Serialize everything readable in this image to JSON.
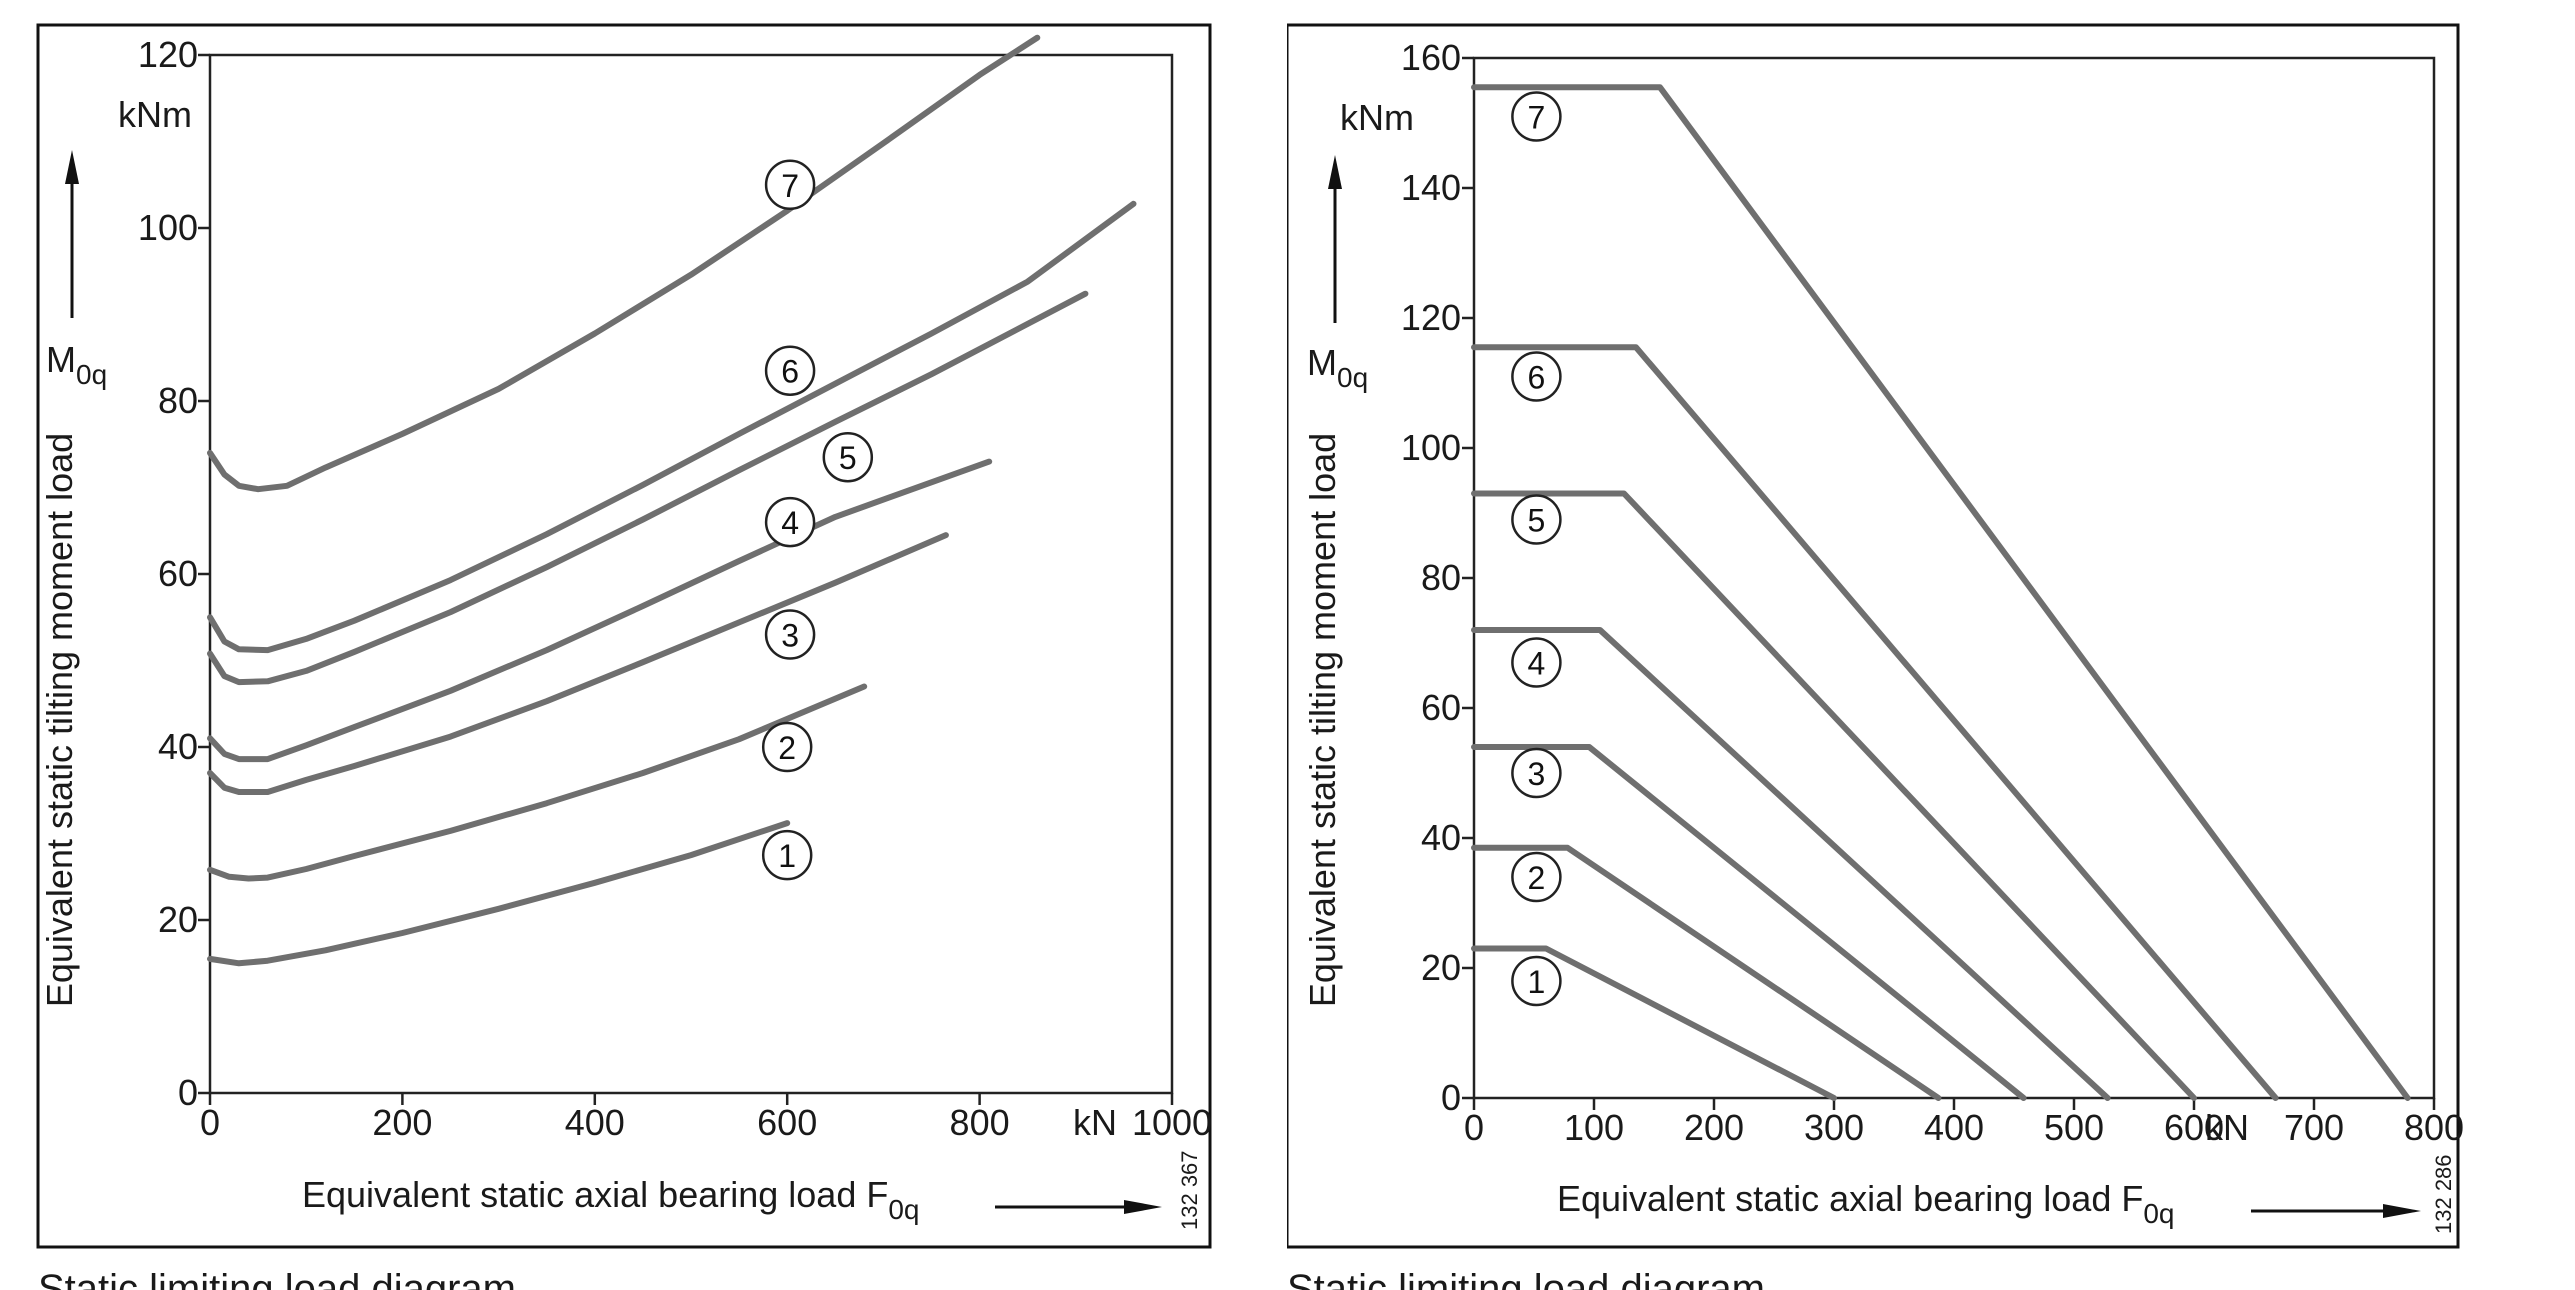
{
  "chart_data": [
    {
      "type": "line",
      "id": "left",
      "xlim": [
        0,
        1000
      ],
      "ylim": [
        0,
        120
      ],
      "x_ticks": [
        0,
        200,
        400,
        600,
        800,
        1000
      ],
      "x_tick_labels": [
        "0",
        "200",
        "400",
        "600",
        "800",
        "1000"
      ],
      "y_ticks": [
        0,
        20,
        40,
        60,
        80,
        100,
        120
      ],
      "y_tick_labels": [
        "0",
        "20",
        "40",
        "60",
        "80",
        "100",
        "120"
      ],
      "x_unit": "kN",
      "y_unit": "kNm",
      "xlabel": "Equivalent static axial bearing load",
      "xsymbol": "F",
      "xsymbol_sub": "0q",
      "ylabel": "Equivalent static tilting moment load",
      "ysymbol": "M",
      "ysymbol_sub": "0q",
      "figure_id": "132 367",
      "caption": "Static limiting load diagram",
      "grid": false,
      "series": [
        {
          "marker": "1",
          "label_at": [
            600,
            27.5
          ],
          "x": [
            0,
            30,
            60,
            120,
            200,
            300,
            400,
            500,
            600
          ],
          "y": [
            15.5,
            15,
            15.3,
            16.5,
            18.5,
            21.3,
            24.3,
            27.5,
            31.2
          ]
        },
        {
          "marker": "2",
          "label_at": [
            600,
            40
          ],
          "x": [
            0,
            20,
            40,
            60,
            100,
            150,
            250,
            350,
            450,
            550,
            680
          ],
          "y": [
            25.8,
            25.0,
            24.8,
            24.9,
            25.9,
            27.4,
            30.3,
            33.5,
            37.0,
            40.9,
            47.0
          ]
        },
        {
          "marker": "3",
          "label_at": [
            603,
            53
          ],
          "x": [
            0,
            15,
            30,
            60,
            100,
            150,
            250,
            350,
            450,
            550,
            650,
            765
          ],
          "y": [
            37.0,
            35.3,
            34.8,
            34.8,
            36.2,
            37.8,
            41.2,
            45.3,
            49.8,
            54.4,
            59.0,
            64.5
          ]
        },
        {
          "marker": "4",
          "label_at": [
            603,
            66
          ],
          "x": [
            0,
            15,
            30,
            60,
            100,
            150,
            250,
            350,
            450,
            550,
            650,
            810
          ],
          "y": [
            41.0,
            39.2,
            38.6,
            38.6,
            40.2,
            42.3,
            46.5,
            51.2,
            56.3,
            61.5,
            66.6,
            73.0
          ]
        },
        {
          "marker": "5",
          "label_at": [
            663,
            73.5
          ],
          "x": [
            0,
            15,
            30,
            60,
            100,
            150,
            250,
            350,
            450,
            550,
            650,
            750,
            910
          ],
          "y": [
            50.8,
            48.2,
            47.5,
            47.6,
            48.8,
            51.0,
            55.6,
            60.8,
            66.3,
            72.0,
            77.6,
            83.1,
            92.4
          ]
        },
        {
          "marker": "6",
          "label_at": [
            603,
            83.5
          ],
          "x": [
            0,
            15,
            30,
            60,
            100,
            150,
            250,
            350,
            450,
            550,
            650,
            750,
            850,
            960
          ],
          "y": [
            55.0,
            52.2,
            51.3,
            51.2,
            52.5,
            54.6,
            59.3,
            64.6,
            70.3,
            76.2,
            82.0,
            87.8,
            93.8,
            102.8
          ]
        },
        {
          "marker": "7",
          "label_at": [
            603,
            105
          ],
          "x": [
            0,
            15,
            30,
            50,
            80,
            120,
            200,
            300,
            400,
            500,
            600,
            700,
            800,
            860
          ],
          "y": [
            74.0,
            71.5,
            70.2,
            69.8,
            70.2,
            72.3,
            76.2,
            81.4,
            87.8,
            94.6,
            102.0,
            109.8,
            117.7,
            122.0
          ]
        }
      ]
    },
    {
      "type": "line",
      "id": "right",
      "xlim": [
        0,
        800
      ],
      "ylim": [
        0,
        160
      ],
      "x_ticks": [
        0,
        100,
        200,
        300,
        400,
        500,
        600,
        700,
        800
      ],
      "x_tick_labels": [
        "0",
        "100",
        "200",
        "300",
        "400",
        "500",
        "600",
        "700",
        "800"
      ],
      "y_ticks": [
        0,
        20,
        40,
        60,
        80,
        100,
        120,
        140,
        160
      ],
      "y_tick_labels": [
        "0",
        "20",
        "40",
        "60",
        "80",
        "100",
        "120",
        "140",
        "160"
      ],
      "x_unit": "kN",
      "y_unit": "kNm",
      "xlabel": "Equivalent static axial bearing load",
      "xsymbol": "F",
      "xsymbol_sub": "0q",
      "ylabel": "Equivalent static tilting moment load",
      "ysymbol": "M",
      "ysymbol_sub": "0q",
      "figure_id": "132 286",
      "caption": "Static limiting load diagram",
      "grid": false,
      "series": [
        {
          "marker": "1",
          "label_at": [
            52,
            18
          ],
          "x": [
            0,
            60,
            300
          ],
          "y": [
            23,
            23,
            0
          ]
        },
        {
          "marker": "2",
          "label_at": [
            52,
            34
          ],
          "x": [
            0,
            78,
            387
          ],
          "y": [
            38.5,
            38.5,
            0
          ]
        },
        {
          "marker": "3",
          "label_at": [
            52,
            50
          ],
          "x": [
            0,
            96,
            458
          ],
          "y": [
            54,
            54,
            0
          ]
        },
        {
          "marker": "4",
          "label_at": [
            52,
            67
          ],
          "x": [
            0,
            105,
            528
          ],
          "y": [
            72,
            72,
            0
          ]
        },
        {
          "marker": "5",
          "label_at": [
            52,
            89
          ],
          "x": [
            0,
            125,
            600
          ],
          "y": [
            93,
            93,
            0
          ]
        },
        {
          "marker": "6",
          "label_at": [
            52,
            111
          ],
          "x": [
            0,
            135,
            668
          ],
          "y": [
            115.5,
            115.5,
            0
          ]
        },
        {
          "marker": "7",
          "label_at": [
            52,
            151
          ],
          "x": [
            0,
            155,
            778
          ],
          "y": [
            155.5,
            155.5,
            0
          ]
        }
      ]
    }
  ]
}
